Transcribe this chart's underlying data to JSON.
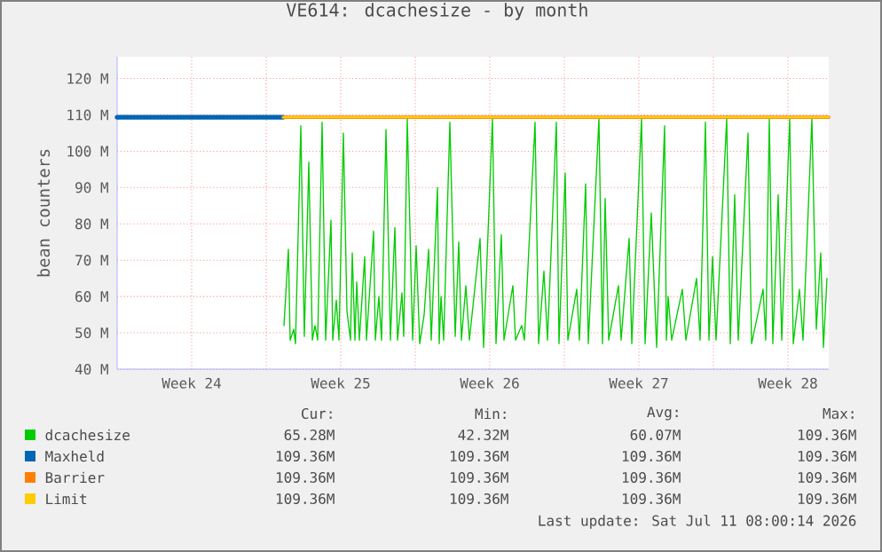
{
  "chart_data": {
    "type": "line",
    "title": "VE614: dcachesize - by month",
    "ylabel": "bean counters",
    "xlim": [
      "2026-06-08",
      "2026-07-11T10:00"
    ],
    "ylim": [
      40,
      126
    ],
    "xticks": [
      {
        "value": "2026-06-11T12:00",
        "label": "Week 24"
      },
      {
        "value": "2026-06-15",
        "label": null
      },
      {
        "value": "2026-06-18T12:00",
        "label": "Week 25"
      },
      {
        "value": "2026-06-22",
        "label": null
      },
      {
        "value": "2026-06-25T12:00",
        "label": "Week 26"
      },
      {
        "value": "2026-06-29",
        "label": null
      },
      {
        "value": "2026-07-02T12:00",
        "label": "Week 27"
      },
      {
        "value": "2026-07-06",
        "label": null
      },
      {
        "value": "2026-07-09T12:00",
        "label": "Week 28"
      }
    ],
    "yticks": [
      {
        "value": 40,
        "label": "40 M"
      },
      {
        "value": 50,
        "label": "50 M"
      },
      {
        "value": 60,
        "label": "60 M"
      },
      {
        "value": 70,
        "label": "70 M"
      },
      {
        "value": 80,
        "label": "80 M"
      },
      {
        "value": 90,
        "label": "90 M"
      },
      {
        "value": 100,
        "label": "100 M"
      },
      {
        "value": 110,
        "label": "110 M"
      },
      {
        "value": 120,
        "label": "120 M"
      }
    ],
    "grid": true,
    "legend": "bottom",
    "marker": "none",
    "line_style": "solid",
    "series": [
      {
        "name": "dcachesize",
        "color": "#00cc00",
        "x": [
          "2026-06-15T20:00",
          "2026-06-16T01:00",
          "2026-06-16T03:00",
          "2026-06-16T07:00",
          "2026-06-16T09:00",
          "2026-06-16T15:00",
          "2026-06-16T19:00",
          "2026-06-17T00:00",
          "2026-06-17T04:00",
          "2026-06-17T07:00",
          "2026-06-17T10:00",
          "2026-06-17T15:00",
          "2026-06-17T19:00",
          "2026-06-18T01:00",
          "2026-06-18T03:00",
          "2026-06-18T07:00",
          "2026-06-18T10:00",
          "2026-06-18T15:00",
          "2026-06-18T19:00",
          "2026-06-18T23:00",
          "2026-06-19T01:00",
          "2026-06-19T04:00",
          "2026-06-19T06:00",
          "2026-06-19T09:00",
          "2026-06-19T15:00",
          "2026-06-19T17:00",
          "2026-06-20T01:00",
          "2026-06-20T03:00",
          "2026-06-20T07:00",
          "2026-06-20T10:00",
          "2026-06-20T15:00",
          "2026-06-20T20:00",
          "2026-06-21T01:00",
          "2026-06-21T04:00",
          "2026-06-21T09:00",
          "2026-06-21T11:00",
          "2026-06-21T15:00",
          "2026-06-21T21:00",
          "2026-06-22T01:00",
          "2026-06-22T05:00",
          "2026-06-22T10:00",
          "2026-06-22T15:00",
          "2026-06-22T18:00",
          "2026-06-23T01:00",
          "2026-06-23T03:00",
          "2026-06-23T05:00",
          "2026-06-23T08:00",
          "2026-06-23T15:00",
          "2026-06-23T21:00",
          "2026-06-24T01:00",
          "2026-06-24T04:00",
          "2026-06-24T09:00",
          "2026-06-24T13:00",
          "2026-06-25T01:00",
          "2026-06-25T05:00",
          "2026-06-25T15:00",
          "2026-06-25T19:00",
          "2026-06-26T01:00",
          "2026-06-26T04:00",
          "2026-06-26T14:00",
          "2026-06-26T17:00",
          "2026-06-27T00:00",
          "2026-06-27T03:00",
          "2026-06-27T15:00",
          "2026-06-27T19:00",
          "2026-06-28T01:00",
          "2026-06-28T05:00",
          "2026-06-28T15:00",
          "2026-06-28T18:00",
          "2026-06-29T01:00",
          "2026-06-29T04:00",
          "2026-06-29T14:00",
          "2026-06-29T17:00",
          "2026-06-30T00:00",
          "2026-06-30T03:00",
          "2026-06-30T15:00",
          "2026-06-30T19:00",
          "2026-06-30T22:00",
          "2026-07-01T02:00",
          "2026-07-01T13:00",
          "2026-07-01T16:00",
          "2026-07-02T01:00",
          "2026-07-02T04:00",
          "2026-07-02T15:00",
          "2026-07-02T19:00",
          "2026-07-03T02:00",
          "2026-07-03T08:00",
          "2026-07-03T17:00",
          "2026-07-03T19:00",
          "2026-07-03T21:00",
          "2026-07-04T01:00",
          "2026-07-04T13:00",
          "2026-07-04T17:00",
          "2026-07-05T05:00",
          "2026-07-05T09:00",
          "2026-07-05T15:00",
          "2026-07-05T19:00",
          "2026-07-05T23:00",
          "2026-07-06T03:00",
          "2026-07-06T15:00",
          "2026-07-06T19:00",
          "2026-07-07T00:00",
          "2026-07-07T04:00",
          "2026-07-07T15:00",
          "2026-07-07T19:00",
          "2026-07-08T08:00",
          "2026-07-08T11:00",
          "2026-07-08T15:00",
          "2026-07-08T19:00",
          "2026-07-09T01:00",
          "2026-07-09T05:00",
          "2026-07-09T14:00",
          "2026-07-09T18:00",
          "2026-07-10T01:00",
          "2026-07-10T05:00",
          "2026-07-10T15:00",
          "2026-07-10T20:00",
          "2026-07-11T01:00",
          "2026-07-11T04:00",
          "2026-07-11T08:00"
        ],
        "values": [
          52,
          73,
          48,
          51,
          47,
          107,
          49,
          97,
          48,
          52,
          48,
          108,
          48,
          81,
          48,
          59,
          48,
          105,
          56,
          48,
          72,
          48,
          64,
          48,
          71,
          48,
          78,
          48,
          60,
          48,
          106,
          48,
          79,
          48,
          61,
          49,
          109,
          48,
          74,
          47,
          55,
          73,
          48,
          90,
          47,
          60,
          48,
          108,
          49,
          75,
          48,
          63,
          48,
          76,
          46,
          109,
          47,
          77,
          48,
          63,
          48,
          52,
          48,
          108,
          47,
          67,
          48,
          108,
          47,
          94,
          48,
          62,
          48,
          91,
          47,
          109,
          47,
          87,
          48,
          63,
          48,
          76,
          47,
          109,
          47,
          83,
          46,
          107,
          48,
          60,
          48,
          62,
          48,
          65,
          48,
          108,
          48,
          71,
          48,
          109,
          47,
          88,
          48,
          105,
          47,
          62,
          48,
          109,
          47,
          88,
          48,
          109,
          47,
          62,
          48,
          109,
          51,
          72,
          46,
          65
        ]
      },
      {
        "name": "Maxheld",
        "color": "#0066b3",
        "x": [
          "2026-06-08",
          "2026-06-15T19:00"
        ],
        "values": [
          109.36,
          109.36
        ]
      },
      {
        "name": "Barrier",
        "color": "#ff8000",
        "x": [
          "2026-06-15T19:00",
          "2026-07-11T10:00"
        ],
        "values": [
          109.36,
          109.36
        ]
      },
      {
        "name": "Limit",
        "color": "#ffcc00",
        "x": [
          "2026-06-15T19:00",
          "2026-07-11T10:00"
        ],
        "values": [
          109.36,
          109.36
        ]
      }
    ],
    "annotations": [
      "Cur:",
      "Min:",
      "Avg:",
      "Max:",
      "65.28M",
      "42.32M",
      "60.07M",
      "109.36M",
      "109.36M",
      "109.36M",
      "109.36M",
      "109.36M",
      "109.36M",
      "109.36M",
      "109.36M",
      "109.36M",
      "109.36M",
      "109.36M",
      "109.36M",
      "109.36M",
      "Last update: Sat Jul 11 08:00:14 2026"
    ]
  }
}
